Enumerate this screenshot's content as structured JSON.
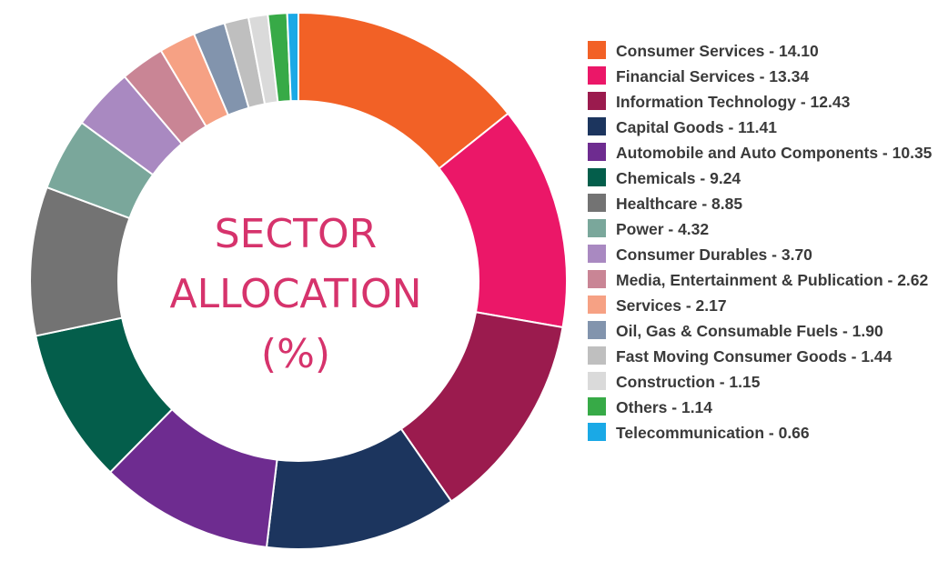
{
  "center_title": {
    "line1": "SECTOR",
    "line2": "ALLOCATION",
    "line3": "(%)"
  },
  "chart_data": {
    "type": "pie",
    "donut": true,
    "title": "SECTOR ALLOCATION (%)",
    "unit": "%",
    "legend_position": "right",
    "start_angle_deg": 0,
    "direction": "clockwise",
    "slices": [
      {
        "label": "Consumer Services - 14.10",
        "name": "Consumer Services",
        "value": 14.1,
        "color": "#f26126"
      },
      {
        "label": "Financial Services - 13.34",
        "name": "Financial Services",
        "value": 13.34,
        "color": "#eb1768"
      },
      {
        "label": "Information Technology - 12.43",
        "name": "Information Technology",
        "value": 12.43,
        "color": "#9b1b4e"
      },
      {
        "label": "Capital Goods - 11.41",
        "name": "Capital Goods",
        "value": 11.41,
        "color": "#1c355e"
      },
      {
        "label": "Automobile and Auto Components - 10.35",
        "name": "Automobile and Auto Components",
        "value": 10.35,
        "color": "#6e2c90"
      },
      {
        "label": "Chemicals - 9.24",
        "name": "Chemicals",
        "value": 9.24,
        "color": "#045e4b"
      },
      {
        "label": "Healthcare - 8.85",
        "name": "Healthcare",
        "value": 8.85,
        "color": "#737373"
      },
      {
        "label": "Power - 4.32",
        "name": "Power",
        "value": 4.32,
        "color": "#7aa79b"
      },
      {
        "label": "Consumer Durables - 3.70",
        "name": "Consumer Durables",
        "value": 3.7,
        "color": "#a989c1"
      },
      {
        "label": "Media, Entertainment & Publication - 2.62",
        "name": "Media, Entertainment & Publication",
        "value": 2.62,
        "color": "#c98595"
      },
      {
        "label": "Services - 2.17",
        "name": "Services",
        "value": 2.17,
        "color": "#f6a184"
      },
      {
        "label": "Oil, Gas & Consumable Fuels - 1.90",
        "name": "Oil, Gas & Consumable Fuels",
        "value": 1.9,
        "color": "#8294ad"
      },
      {
        "label": "Fast Moving Consumer Goods - 1.44",
        "name": "Fast Moving Consumer Goods",
        "value": 1.44,
        "color": "#bfbfbf"
      },
      {
        "label": "Construction - 1.15",
        "name": "Construction",
        "value": 1.15,
        "color": "#dadada"
      },
      {
        "label": "Others - 1.14",
        "name": "Others",
        "value": 1.14,
        "color": "#37aa47"
      },
      {
        "label": "Telecommunication - 0.66",
        "name": "Telecommunication",
        "value": 0.66,
        "color": "#1aa9e6"
      }
    ]
  }
}
